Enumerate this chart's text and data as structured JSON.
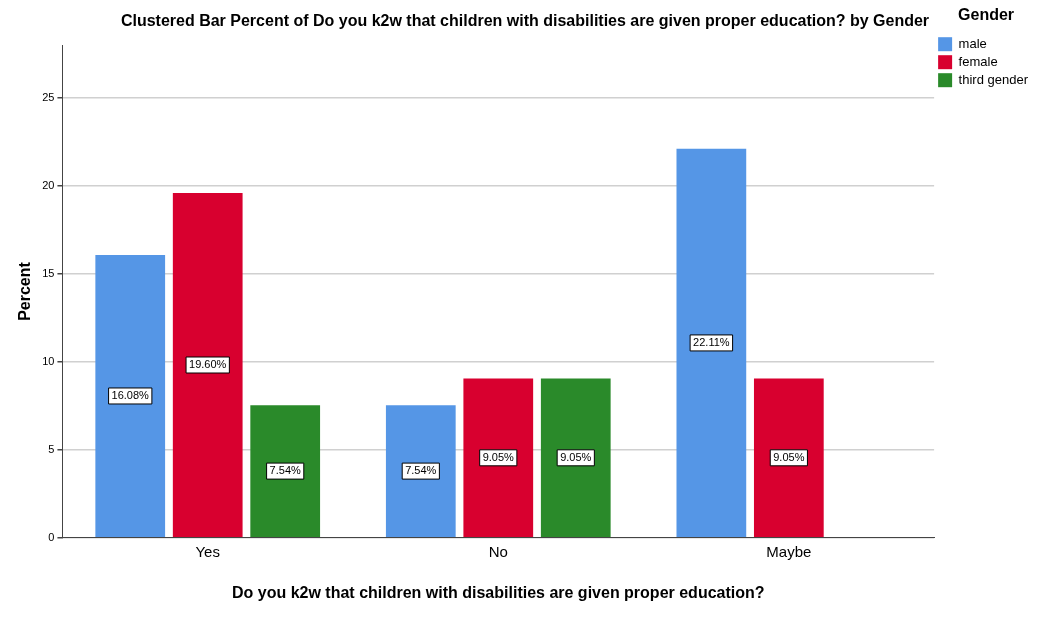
{
  "chart_data": {
    "type": "bar",
    "title": "Clustered Bar Percent of Do you k2w that children with disabilities are given proper education? by Gender",
    "xlabel": "Do you k2w that children with disabilities are given proper education?",
    "ylabel": "Percent",
    "legend_title": "Gender",
    "categories": [
      "Yes",
      "No",
      "Maybe"
    ],
    "series": [
      {
        "name": "male",
        "color": "#5596e6",
        "values": [
          16.08,
          7.54,
          22.11
        ],
        "value_labels": [
          "16.08%",
          "7.54%",
          "22.11%"
        ]
      },
      {
        "name": "female",
        "color": "#d8002f",
        "values": [
          19.6,
          9.05,
          9.05
        ],
        "value_labels": [
          "19.60%",
          "9.05%",
          "9.05%"
        ]
      },
      {
        "name": "third gender",
        "color": "#2a8a2a",
        "values": [
          7.54,
          9.05,
          null
        ],
        "value_labels": [
          "7.54%",
          "9.05%",
          null
        ]
      }
    ],
    "ylim": [
      0,
      28
    ],
    "yticks": [
      0,
      5,
      10,
      15,
      20,
      25
    ],
    "grid": "y",
    "legend": "top right"
  }
}
